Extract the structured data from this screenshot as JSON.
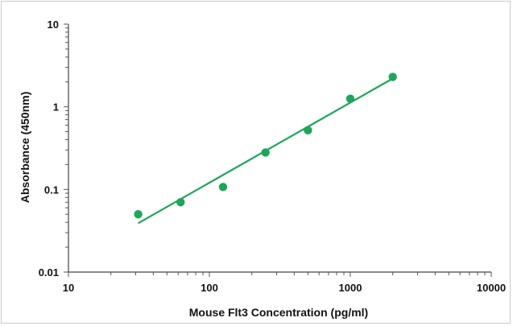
{
  "chart_data": {
    "type": "scatter",
    "title": "",
    "xlabel": "Mouse Flt3 Concentration (pg/ml)",
    "ylabel": "Absorbance (450nm)",
    "xscale": "log",
    "yscale": "log",
    "xlim": [
      10,
      10000
    ],
    "ylim": [
      0.01,
      10
    ],
    "x_tick_labels": [
      "10",
      "100",
      "1000",
      "10000"
    ],
    "y_tick_labels": [
      "0.01",
      "0.1",
      "1",
      "10"
    ],
    "grid": false,
    "legend": "none",
    "marker_color": "#1fa55a",
    "line_color": "#1fa55a",
    "series": [
      {
        "points": [
          {
            "x": 31.25,
            "y": 0.05
          },
          {
            "x": 62.5,
            "y": 0.07
          },
          {
            "x": 125,
            "y": 0.107
          },
          {
            "x": 250,
            "y": 0.28
          },
          {
            "x": 500,
            "y": 0.52
          },
          {
            "x": 1000,
            "y": 1.25
          },
          {
            "x": 2000,
            "y": 2.3
          }
        ],
        "fit_line": {
          "x": [
            31.25,
            2000
          ],
          "y": [
            0.039,
            2.2
          ]
        }
      }
    ]
  }
}
